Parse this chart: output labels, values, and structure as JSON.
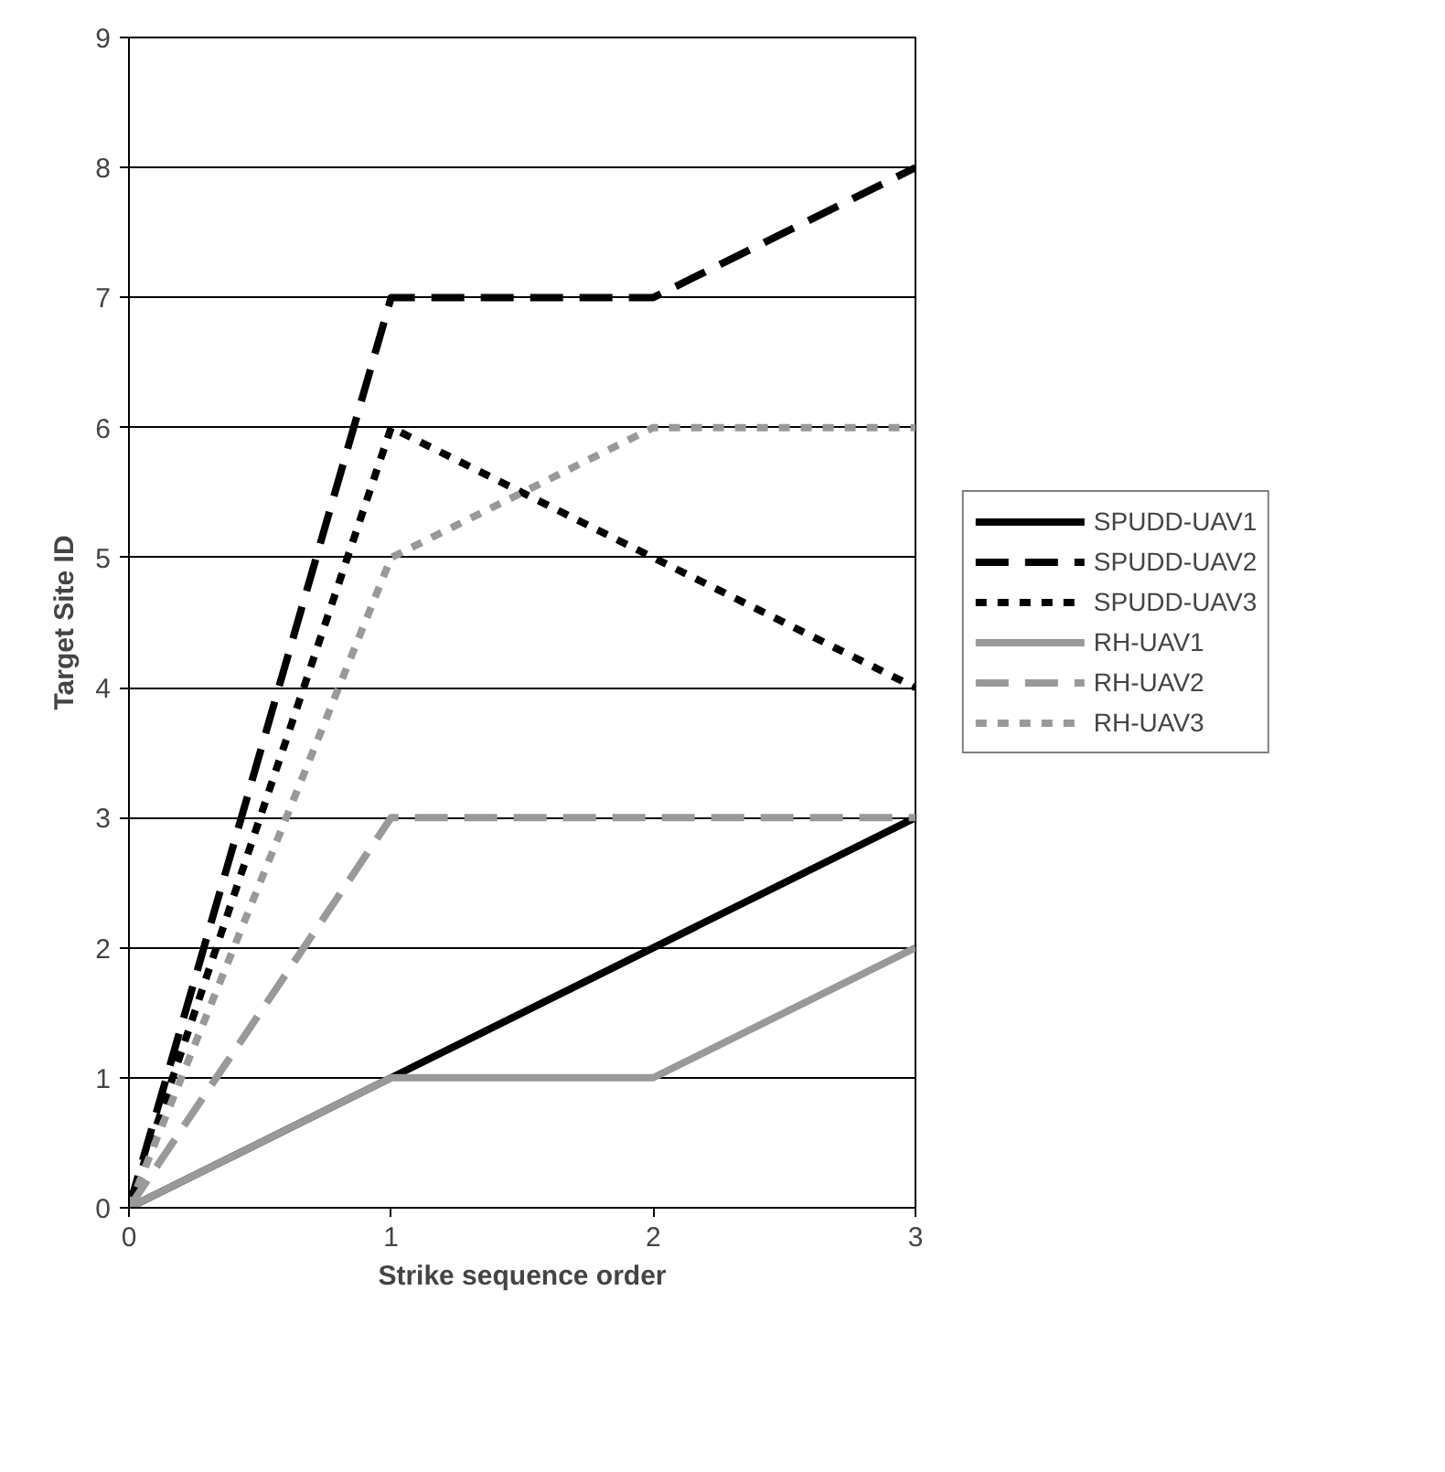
{
  "chart_data": {
    "type": "line",
    "xlabel": "Strike sequence order",
    "ylabel": "Target Site ID",
    "x": [
      0,
      1,
      2,
      3
    ],
    "xlim": [
      0,
      3
    ],
    "xticks": [
      0,
      1,
      2,
      3
    ],
    "ylim": [
      0,
      9
    ],
    "yticks": [
      0,
      1,
      2,
      3,
      4,
      5,
      6,
      7,
      8,
      9
    ],
    "grid": "y",
    "legend": "right",
    "marker": "none",
    "series": [
      {
        "name": "SPUDD-UAV1",
        "color": "#000000",
        "line_style": "solid",
        "values": [
          0,
          1,
          2,
          3
        ]
      },
      {
        "name": "SPUDD-UAV2",
        "color": "#000000",
        "line_style": "dashed",
        "values": [
          0,
          7,
          7,
          8
        ]
      },
      {
        "name": "SPUDD-UAV3",
        "color": "#000000",
        "line_style": "dotted",
        "values": [
          0,
          6,
          5,
          4
        ]
      },
      {
        "name": "RH-UAV1",
        "color": "#999999",
        "line_style": "solid",
        "values": [
          0,
          1,
          1,
          2
        ]
      },
      {
        "name": "RH-UAV2",
        "color": "#999999",
        "line_style": "dashed",
        "values": [
          0,
          3,
          3,
          3
        ]
      },
      {
        "name": "RH-UAV3",
        "color": "#999999",
        "line_style": "dotted",
        "values": [
          0,
          5,
          6,
          6
        ]
      }
    ]
  }
}
